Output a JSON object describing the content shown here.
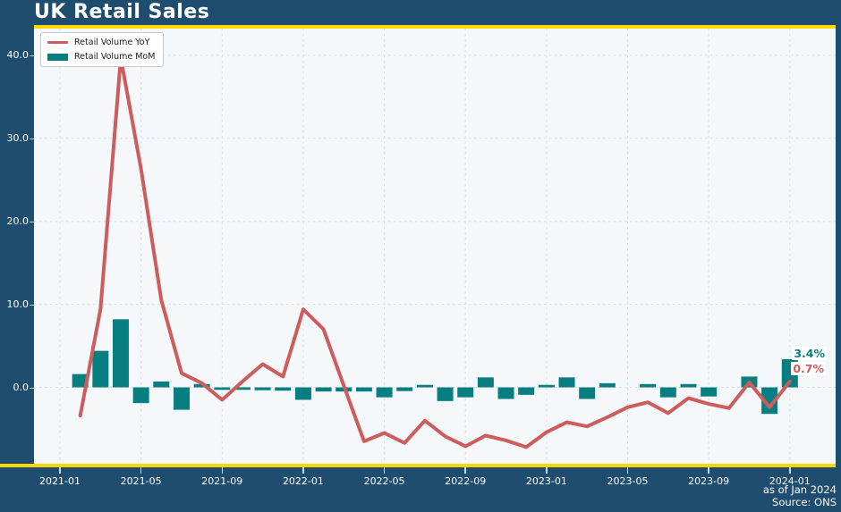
{
  "title": "UK Retail Sales",
  "legend": {
    "items": [
      {
        "label": "Retail Volume YoY",
        "type": "line"
      },
      {
        "label": "Retail Volume MoM",
        "type": "bar"
      }
    ]
  },
  "annotations": {
    "mom_label": "3.4%",
    "yoy_label": "0.7%"
  },
  "footnote": {
    "as_of": "as of Jan 2024",
    "source": "Source: ONS"
  },
  "colors": {
    "background": "#1f4d6f",
    "accent_rule": "#ffd700",
    "plot_background": "#f4f8fb",
    "grid": "#d9e0e8",
    "yoy_line": "#cd5c5c",
    "mom_bar": "#077e7f",
    "axis_text": "#ffffff",
    "legend_text": "#1a1a1a"
  },
  "chart_data": {
    "type": "combo-line-bar",
    "title": "UK Retail Sales",
    "xlabel": "",
    "ylabel": "",
    "grid": true,
    "legend_position": "upper-left",
    "ylim": [
      -9.4,
      43.2
    ],
    "ytick_values": [
      0,
      10,
      20,
      30,
      40
    ],
    "ytick_labels": [
      "0.0",
      "10.0",
      "20.0",
      "30.0",
      "40.0"
    ],
    "xticks": [
      "2021-01",
      "2021-05",
      "2021-09",
      "2022-01",
      "2022-05",
      "2022-09",
      "2023-01",
      "2023-05",
      "2023-09",
      "2024-01"
    ],
    "x": [
      "2021-01",
      "2021-02",
      "2021-03",
      "2021-04",
      "2021-05",
      "2021-06",
      "2021-07",
      "2021-08",
      "2021-09",
      "2021-10",
      "2021-11",
      "2021-12",
      "2022-01",
      "2022-02",
      "2022-03",
      "2022-04",
      "2022-05",
      "2022-06",
      "2022-07",
      "2022-08",
      "2022-09",
      "2022-10",
      "2022-11",
      "2022-12",
      "2023-01",
      "2023-02",
      "2023-03",
      "2023-04",
      "2023-05",
      "2023-06",
      "2023-07",
      "2023-08",
      "2023-09",
      "2023-10",
      "2023-11",
      "2023-12",
      "2024-01"
    ],
    "series": [
      {
        "name": "Retail Volume YoY",
        "type": "line",
        "color": "#cd5c5c",
        "values": [
          null,
          -3.4,
          9.4,
          39.7,
          26.3,
          10.5,
          1.7,
          0.5,
          -1.5,
          0.7,
          2.8,
          1.3,
          9.4,
          7.0,
          0.2,
          -6.5,
          -5.5,
          -6.7,
          -4.0,
          -5.9,
          -7.1,
          -5.8,
          -6.4,
          -7.2,
          -5.4,
          -4.2,
          -4.7,
          -3.6,
          -2.4,
          -1.8,
          -3.1,
          -1.3,
          -2.0,
          -2.5,
          0.6,
          -2.4,
          0.7
        ]
      },
      {
        "name": "Retail Volume MoM",
        "type": "bar",
        "color": "#077e7f",
        "values": [
          null,
          1.6,
          4.4,
          8.2,
          -1.9,
          0.7,
          -2.7,
          0.4,
          -0.3,
          -0.3,
          -0.35,
          -0.4,
          -1.5,
          -0.5,
          -0.5,
          -0.5,
          -1.2,
          -0.45,
          0.3,
          -1.65,
          -1.2,
          1.2,
          -1.4,
          -0.9,
          0.3,
          1.2,
          -1.4,
          0.5,
          0.0,
          0.4,
          -1.2,
          0.4,
          -1.1,
          0.0,
          1.3,
          -3.2,
          3.4
        ]
      }
    ],
    "end_labels": {
      "mom": "3.4%",
      "yoy": "0.7%"
    }
  }
}
